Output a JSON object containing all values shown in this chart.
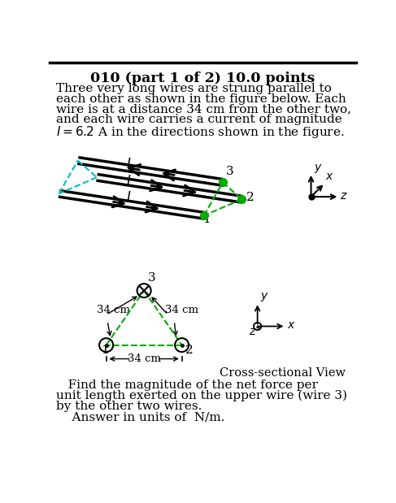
{
  "title": "010 (part 1 of 2) 10.0 points",
  "body_lines": [
    "Three very long wires are strung parallel to",
    "each other as shown in the figure below. Each",
    "wire is at a distance 34 cm from the other two,",
    "and each wire carries a current of magnitude",
    "$I = 6.2$ A in the directions shown in the figure."
  ],
  "footer_lines": [
    "   Find the magnitude of the net force per",
    "unit length exerted on the upper wire (wire 3)",
    "by the other two wires.",
    "    Answer in units of  N/m."
  ],
  "bg_color": "#ffffff",
  "text_color": "#000000",
  "cyan_color": "#00bbcc",
  "green_color": "#00aa00",
  "title_fontsize": 12.5,
  "body_fontsize": 11.0,
  "footer_fontsize": 11.0
}
